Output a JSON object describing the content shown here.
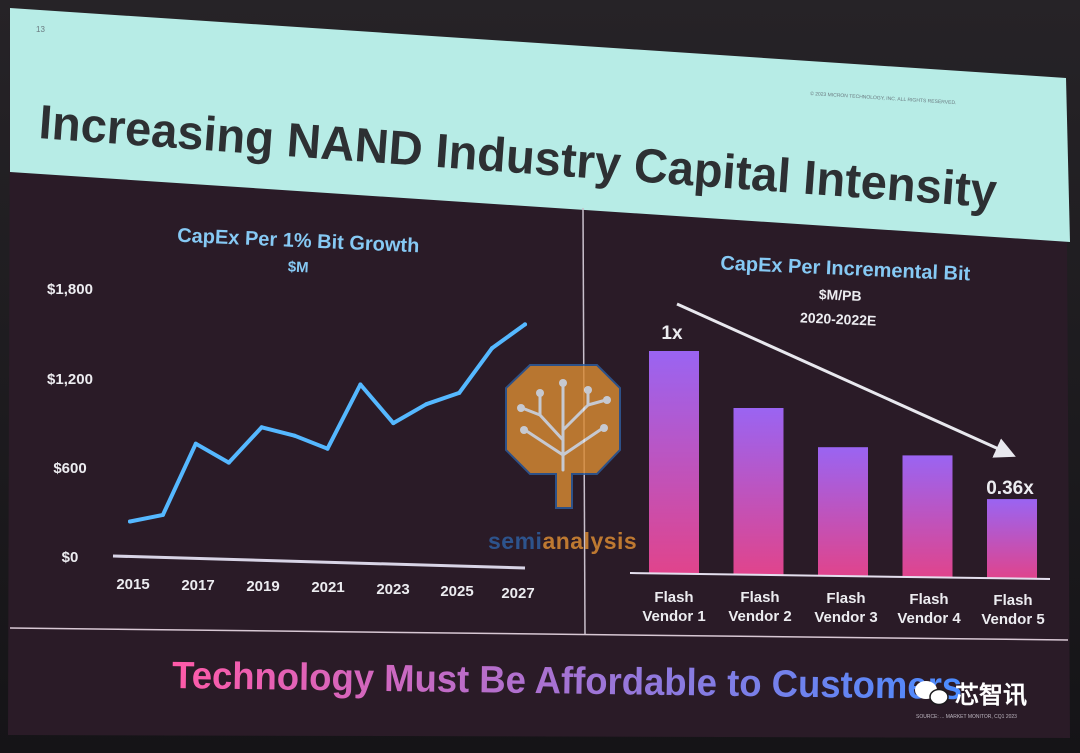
{
  "slide": {
    "page_number": "13",
    "copyright": "© 2023 MICRON TECHNOLOGY, INC. ALL RIGHTS RESERVED.",
    "title": "Increasing NAND Industry Capital Intensity",
    "footer": "Technology Must Be Affordable to Customers",
    "source": "SOURCE: ... MARKET MONITOR, CQ1 2023"
  },
  "watermark": {
    "left": "semi",
    "right": "analysis",
    "brand": "芯智讯"
  },
  "colors": {
    "title_band": "#b7ece6",
    "chart_bg": "#311f2d",
    "line": "#55b8ff",
    "bar_top": "#9a64f2",
    "bar_bottom": "#e0448c",
    "footer_pink": "#ff5aa8",
    "footer_blue": "#4a8cff"
  },
  "chart_data": [
    {
      "type": "line",
      "title": "CapEx Per 1% Bit Growth",
      "subtitle": "$M",
      "x": [
        2015,
        2016,
        2017,
        2018,
        2019,
        2020,
        2021,
        2022,
        2023,
        2024,
        2025,
        2026,
        2027
      ],
      "values": [
        230,
        280,
        760,
        640,
        880,
        830,
        750,
        1180,
        930,
        1060,
        1140,
        1440,
        1600
      ],
      "ylim": [
        0,
        1800
      ],
      "yticks": [
        "$1,800",
        "$1,200",
        "$600",
        "$0"
      ],
      "xticks": [
        "2015",
        "2017",
        "2019",
        "2021",
        "2023",
        "2025",
        "2027"
      ],
      "grid": false
    },
    {
      "type": "bar",
      "title": "CapEx Per Incremental Bit",
      "subtitle": "$M/PB",
      "period": "2020-2022E",
      "categories": [
        [
          "Flash",
          "Vendor 1"
        ],
        [
          "Flash",
          "Vendor 2"
        ],
        [
          "Flash",
          "Vendor 3"
        ],
        [
          "Flash",
          "Vendor 4"
        ],
        [
          "Flash",
          "Vendor 5"
        ]
      ],
      "values": [
        1.0,
        0.75,
        0.58,
        0.55,
        0.36
      ],
      "annotations": [
        "1x",
        "0.36x"
      ],
      "grid": false
    }
  ]
}
